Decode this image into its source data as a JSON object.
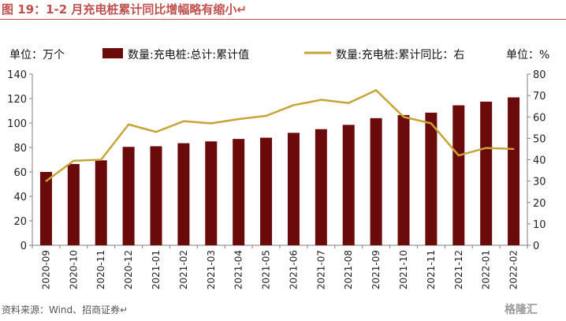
{
  "figure": {
    "title": "图 19：1-2 月充电桩累计同比增幅略有缩小↵",
    "source": "资料来源：Wind、招商证券↵",
    "watermark": "格隆汇"
  },
  "colors": {
    "bar": "#6b0a0a",
    "line": "#c8a437",
    "title": "#c0504d",
    "axis": "#7f7f7f"
  },
  "chart_data": {
    "type": "bar+line",
    "categories": [
      "2020-09",
      "2020-10",
      "2020-11",
      "2020-12",
      "2021-01",
      "2021-02",
      "2021-03",
      "2021-04",
      "2021-05",
      "2021-06",
      "2021-07",
      "2021-08",
      "2021-09",
      "2021-10",
      "2021-11",
      "2021-12",
      "2022-01",
      "2022-02"
    ],
    "series": [
      {
        "name": "数量:充电桩:总计:累计值",
        "type": "bar",
        "axis": "left",
        "values": [
          60,
          66.5,
          69.5,
          80.5,
          81,
          83.5,
          85,
          87,
          88,
          92,
          95,
          98.5,
          104,
          106.5,
          108.5,
          114.5,
          117.5,
          121
        ]
      },
      {
        "name": "数量:充电桩:累计同比：右",
        "type": "line",
        "axis": "right",
        "values": [
          30,
          39.5,
          40,
          56.5,
          53,
          58,
          57,
          59,
          60.5,
          65.5,
          68,
          66.5,
          72.5,
          60,
          57,
          42,
          45.5,
          45
        ]
      }
    ],
    "left_axis": {
      "unit_label": "单位：万个",
      "ylim": [
        0,
        140
      ],
      "ticks": [
        "0",
        "20",
        "40",
        "60",
        "80",
        "100",
        "120",
        "140"
      ]
    },
    "right_axis": {
      "unit_label": "单位：%",
      "ylim": [
        0,
        80
      ],
      "ticks": [
        "0",
        "10",
        "20",
        "30",
        "40",
        "50",
        "60",
        "70",
        "80"
      ]
    },
    "legend_position": "top",
    "grid": false
  }
}
